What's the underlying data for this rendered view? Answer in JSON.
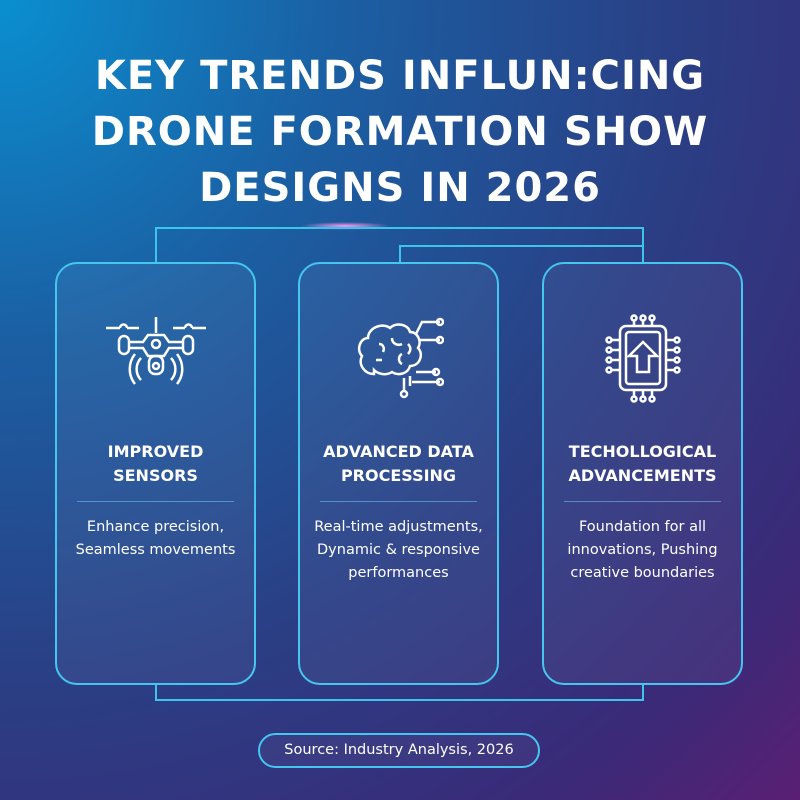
{
  "title": {
    "line1": "KEY TRENDS INFLUN:CING",
    "line2": "DRONE FORMATION SHOW",
    "line3": "DESIGNS IN 2026"
  },
  "cards": [
    {
      "icon": "drone-icon",
      "title1": "IMPROVED",
      "title2": "SENSORS",
      "desc": "Enhance precision, Seamless movements"
    },
    {
      "icon": "brain-circuit-icon",
      "title1": "ADVANCED DATA",
      "title2": "PROCESSING",
      "desc": "Real-time adjustments, Dynamic & responsive performances"
    },
    {
      "icon": "chip-upgrade-icon",
      "title1": "TECHOLLOGICAL",
      "title2": "ADVANCEMENTS",
      "desc": "Foundation for all innovations, Pushing creative boundaries"
    }
  ],
  "source": "Source: Industry Analysis, 2026",
  "colors": {
    "accent": "#45c6ee"
  }
}
